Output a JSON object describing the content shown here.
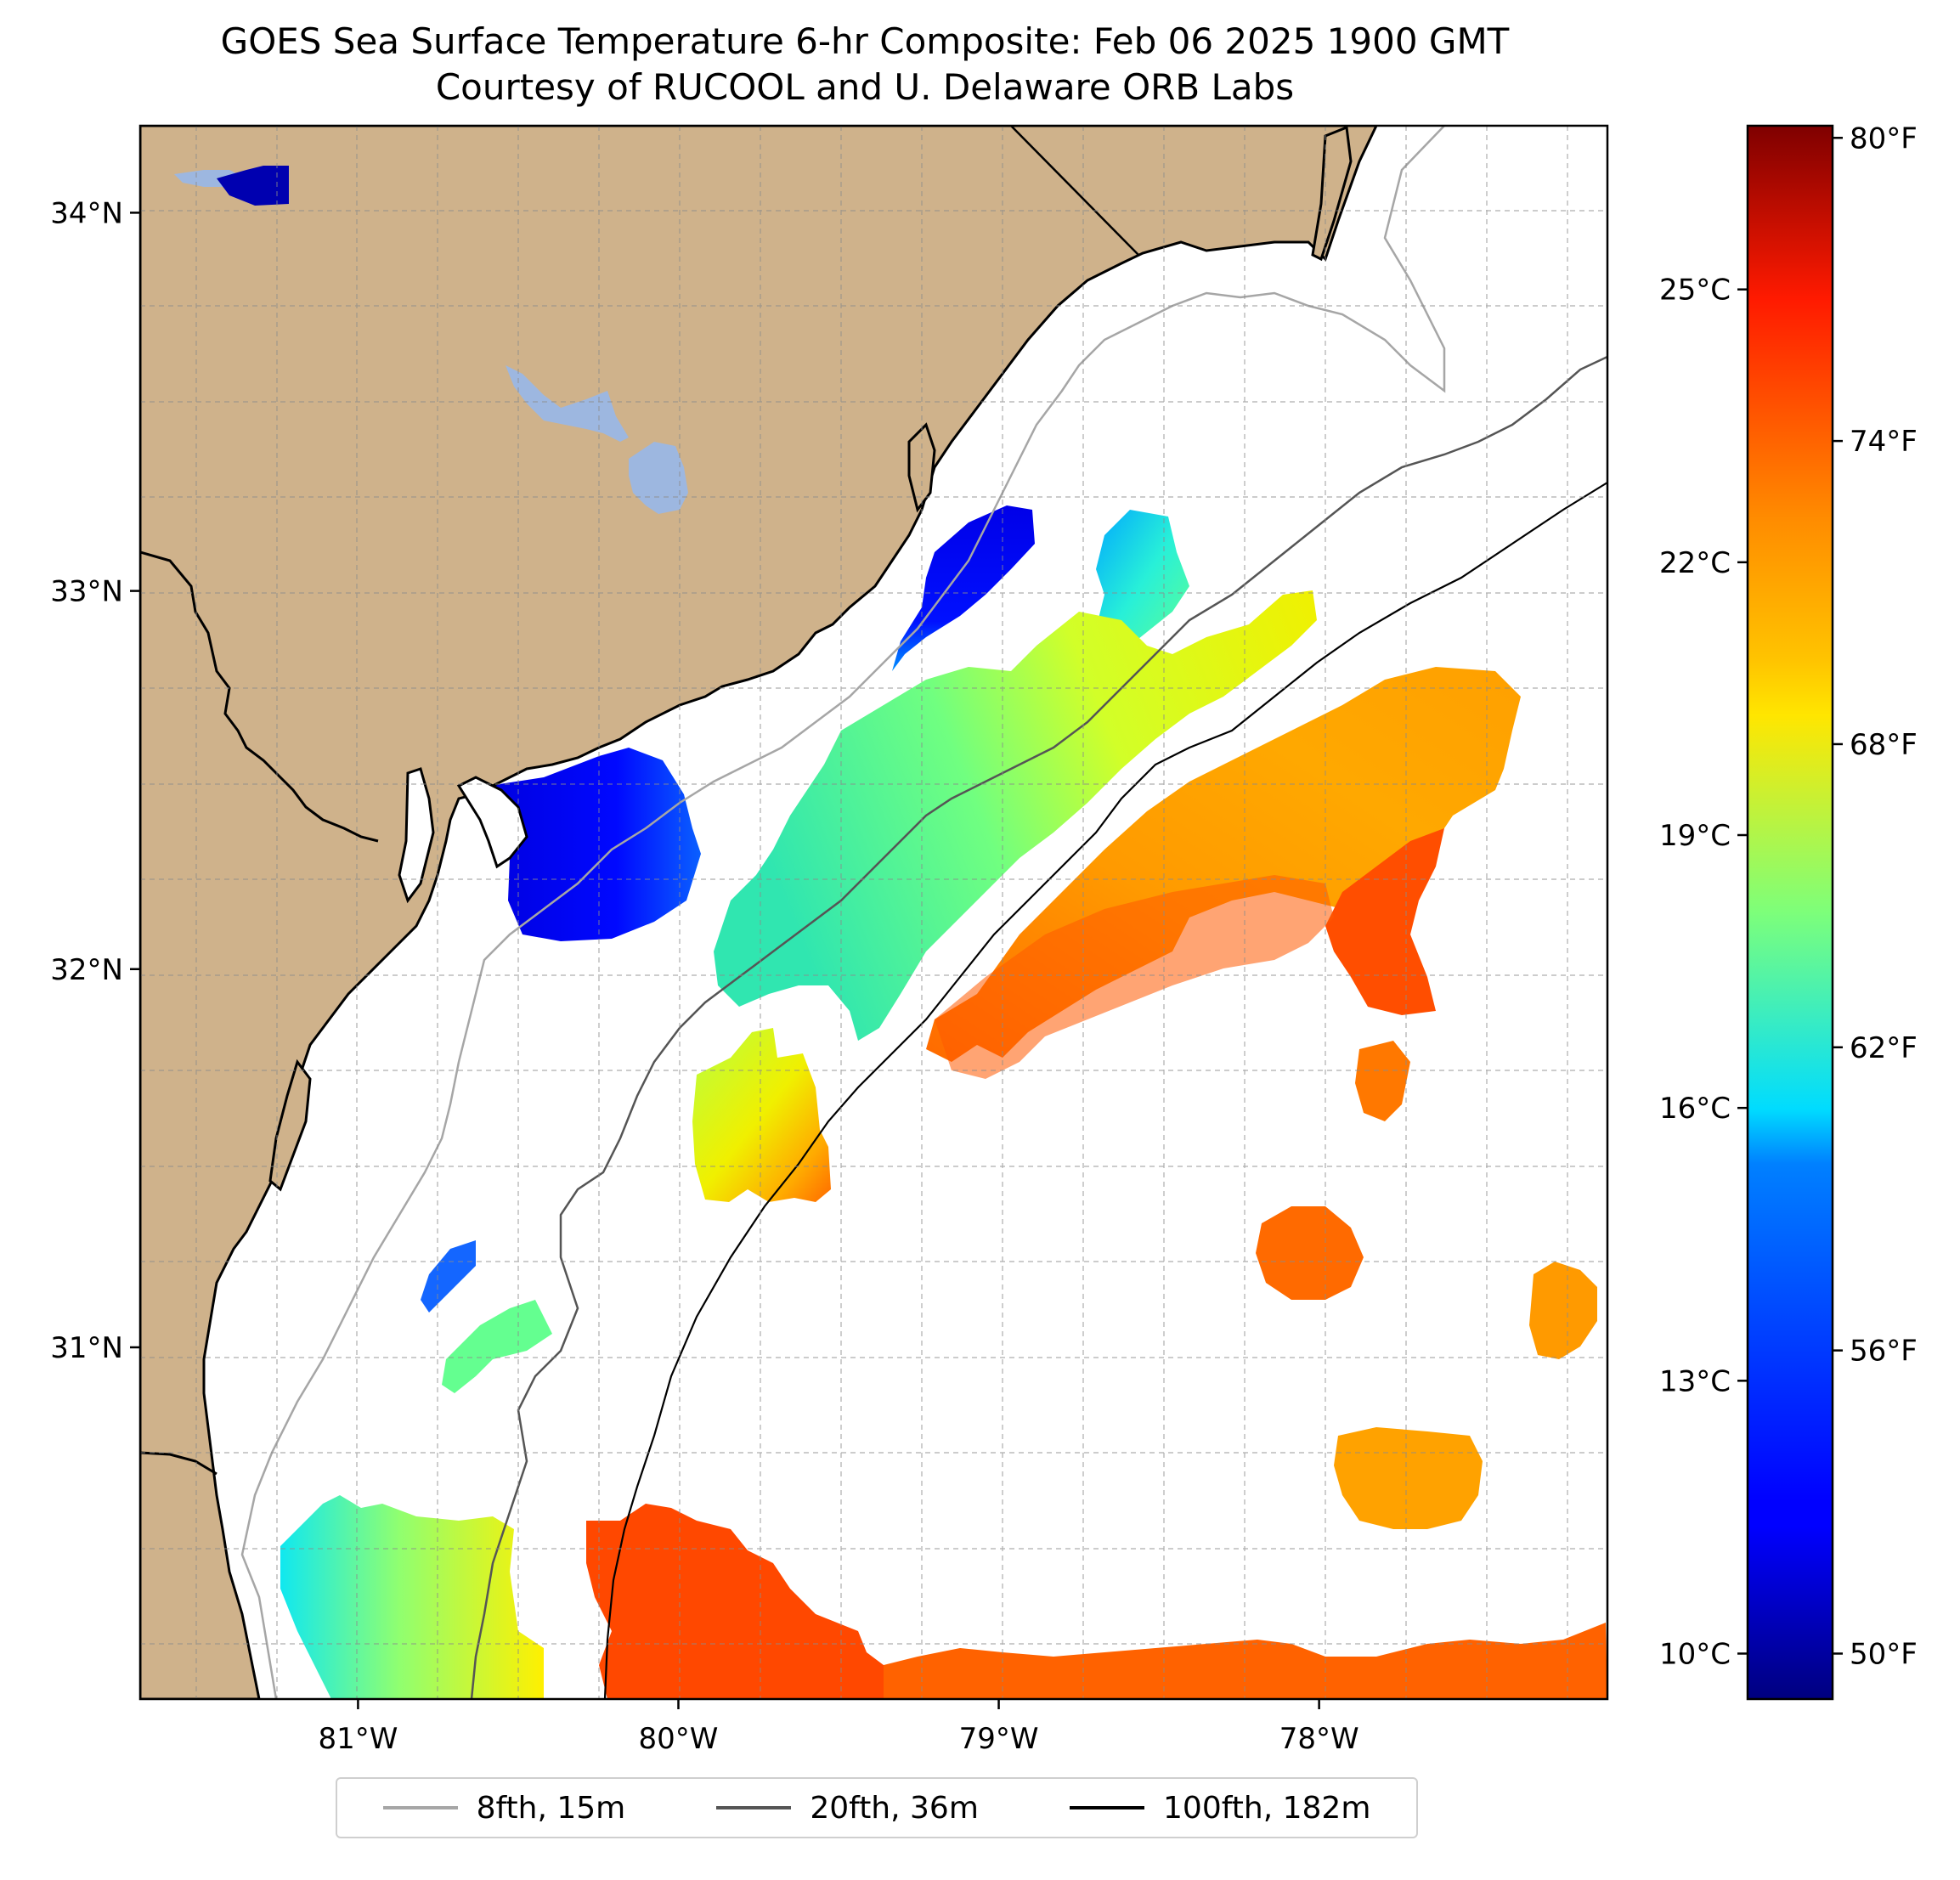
{
  "title": "GOES Sea Surface Temperature 6-hr Composite: Feb 06 2025 1900 GMT",
  "subtitle": "Courtesy of RUCOOL and U. Delaware ORB Labs",
  "map": {
    "lon_range": [
      -81.68,
      -77.1
    ],
    "lat_range": [
      30.07,
      34.23
    ],
    "land_color": "#cfb28b",
    "ocean_color": "#ffffff",
    "lake_color": "#9db7e0",
    "lat_ticks": [
      {
        "value": 34,
        "label": "34°N"
      },
      {
        "value": 33,
        "label": "33°N"
      },
      {
        "value": 32,
        "label": "32°N"
      },
      {
        "value": 31,
        "label": "31°N"
      }
    ],
    "lon_ticks": [
      {
        "value": -81,
        "label": "81°W"
      },
      {
        "value": -80,
        "label": "80°W"
      },
      {
        "value": -79,
        "label": "79°W"
      },
      {
        "value": -78,
        "label": "78°W"
      }
    ]
  },
  "colorbar": {
    "colormap": "jet",
    "range_c": [
      9.5,
      26.8
    ],
    "celsius_ticks": [
      {
        "value": 10,
        "label": "10°C"
      },
      {
        "value": 13,
        "label": "13°C"
      },
      {
        "value": 16,
        "label": "16°C"
      },
      {
        "value": 19,
        "label": "19°C"
      },
      {
        "value": 22,
        "label": "22°C"
      },
      {
        "value": 25,
        "label": "25°C"
      }
    ],
    "fahrenheit_ticks": [
      {
        "value": 50,
        "label": "50°F"
      },
      {
        "value": 56,
        "label": "56°F"
      },
      {
        "value": 62,
        "label": "62°F"
      },
      {
        "value": 68,
        "label": "68°F"
      },
      {
        "value": 74,
        "label": "74°F"
      },
      {
        "value": 80,
        "label": "80°F"
      }
    ]
  },
  "legend": [
    {
      "label": "8fth, 15m",
      "color": "#a6a6a6"
    },
    {
      "label": "20fth, 36m",
      "color": "#555555"
    },
    {
      "label": "100fth, 182m",
      "color": "#000000"
    }
  ]
}
